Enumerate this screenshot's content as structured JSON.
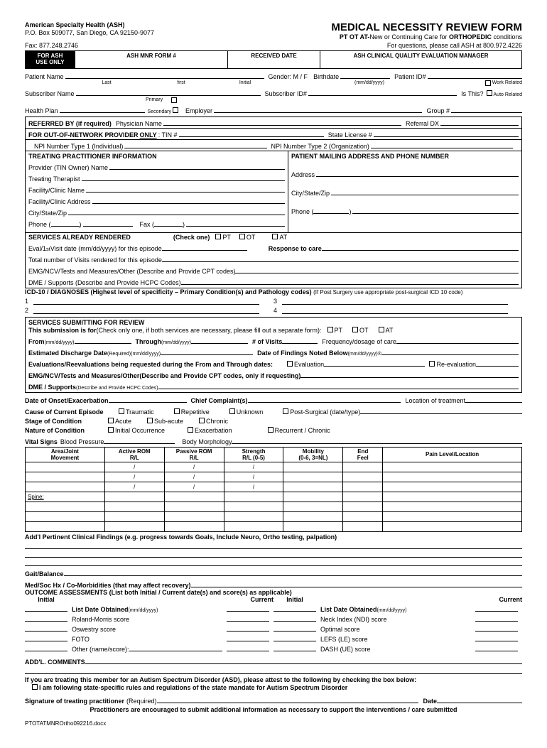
{
  "org": {
    "name": "American Specialty Health (ASH)",
    "addr": "P.O. Box 509077, San Diego, CA 92150-9077",
    "fax": "Fax: 877.248.2746"
  },
  "title": "MEDICAL NECESSITY REVIEW FORM",
  "subtitle_prefix": "PT OT AT-",
  "subtitle_mid": "New or Continuing Care for ",
  "subtitle_bold2": "ORTHOPEDIC",
  "subtitle_suffix": " conditions",
  "questions": "For questions, please call ASH at 800.972.4226",
  "topboxes": {
    "ash_only_1": "FOR ASH",
    "ash_only_2": "USE ONLY",
    "form_num": "ASH MNR FORM #",
    "recv": "RECEIVED DATE",
    "mgr": "ASH CLINICAL QUALITY EVALUATION MANAGER"
  },
  "patient": {
    "name_lbl": "Patient Name",
    "last": "Last",
    "first": "first",
    "initial": "Initial",
    "gender": "Gender: M / F",
    "birthdate": "Birthdate",
    "bd_fmt": "(mm/dd/yyyy)",
    "pid": "Patient ID#",
    "work": "Work Related",
    "sub_name": "Subscriber Name",
    "primary": "Primary",
    "secondary": "Secondary",
    "sub_id": "Subscriber ID#",
    "isthis": "Is This?",
    "auto": "Auto Related",
    "health_plan": "Health Plan",
    "employer": "Employer",
    "group": "Group #"
  },
  "referred": {
    "by": "REFERRED BY (if required)",
    "phys": "Physician Name",
    "refdx": "Referral DX",
    "oon": "FOR OUT-OF-NETWORK PROVIDER ",
    "only": "ONLY",
    "tin": ":  TIN #",
    "state_lic": "State License #",
    "npi1": "NPI Number Type 1 (Individual)",
    "npi2": "NPI Number Type 2 (Organization)"
  },
  "tpi": {
    "head": "TREATING PRACTITIONER INFORMATION",
    "provider": "Provider (TIN Owner) Name",
    "therapist": "Treating Therapist",
    "fac_name": "Facility/Clinic Name",
    "fac_addr": "Facility/Clinic Address",
    "csz": "City/State/Zip",
    "phone": "Phone (",
    "fax": "Fax ("
  },
  "pmail": {
    "head": "PATIENT MAILING ADDRESS AND PHONE NUMBER",
    "addr": "Address",
    "csz": "City/State/Zip",
    "phone": "Phone ("
  },
  "svc_rendered": {
    "head": "SERVICES ALREADY RENDERED",
    "check1": "(Check one)",
    "pt": "PT",
    "ot": "OT",
    "at": "AT",
    "eval": "Eval/1",
    "eval_sup": "st",
    "eval2": " Visit date (mm/dd/yyyy) for this episode",
    "response": "Response to care",
    "total": "Total number of Visits rendered  for this episode",
    "emg": "EMG/NCV/Tests and Measures/Other (Describe and Provide CPT codes)",
    "dme": "DME / Supports (Describe and Provide HCPC Codes)"
  },
  "icd": {
    "head": "ICD-10 / DIAGNOSES (Highest level of specificity – Primary Condition(s) and Pathology codes)",
    "note": "(If Post Surgery use appropriate post-surgical ICD 10 code)",
    "n1": "1",
    "n2": "2",
    "n3": "3",
    "n4": "4"
  },
  "svc_submit": {
    "head": "SERVICES SUBMITTING FOR REVIEW",
    "intro": "This submission is for ",
    "intro2": "(Check only one, if both services are necessary, please fill out a separate form):",
    "pt": "PT",
    "ot": "OT",
    "at": "AT",
    "from": "From",
    "from_fmt": "(mm/dd/yyyy)",
    "through": "Through",
    "thr_fmt": "(mm/dd/yyyy)",
    "visits": "# of Visits",
    "freq": "Frequency/dosage of care",
    "edd": "Estimated Discharge Date ",
    "edd2": "(Required)(mm/dd/yyyy)",
    "dfnb": "Date of Findings Noted Below ",
    "dfnb2": "(mm/dd/yyyy)®",
    "evals": "Evaluations/Reevaluations being requested during the From and Through dates:",
    "eval_cb": "Evaluation",
    "reeval_cb": "Re-evaluation",
    "emg": "EMG/NCV/Tests and Measures/Other(Describe and Provide CPT codes, only if requesting)",
    "dme": "DME / Supports ",
    "dme2": "(Describe and Provide HCPC Codes)"
  },
  "clinical": {
    "onset": "Date of Onset/Exacerbation",
    "chief": "Chief Complaint(s)",
    "loc": "Location of treatment",
    "cause": "Cause of Current Episode",
    "traumatic": "Traumatic",
    "repetitive": "Repetitive",
    "unknown": "Unknown",
    "post_surg": "Post-Surgical (date/type)",
    "stage": "Stage of Condition",
    "acute": "Acute",
    "subacute": "Sub-acute",
    "chronic": "Chronic",
    "nature": "Nature of Condition",
    "initial": "Initial Occurrence",
    "exacer": "Exacerbation",
    "recur": "Recurrent / Chronic",
    "vitals": "Vital Signs",
    "bp": "Blood Pressure",
    "morph": "Body Morphology"
  },
  "vit_headers": [
    "Area/Joint\nMovement",
    "Active ROM\nR/L",
    "Passive ROM\nR/L",
    "Strength\nR/L (0-5)",
    "Mobility\n(0-6, 3=NL)",
    "End\nFeel",
    "Pain Level/Location"
  ],
  "spine": "Spine:",
  "addl_find": "Add'l Pertinent Clinical Findings (e.g. progress towards Goals, Include Neuro, Ortho testing, palpation)",
  "gait": "Gait/Balance",
  "medsoc": "Med/Soc Hx / Co-Morbidities (that may affect recovery)",
  "outcome": {
    "head": "OUTCOME ASSESSMENTS (List both Initial / Current date(s) and score(s) as applicable)",
    "initial": "Initial",
    "current": "Current",
    "ldo": "List Date Obtained",
    "ldo_fmt": "(mm/dd/yyyy)",
    "roland": "Roland-Morris score",
    "oswestry": "Oswestry score",
    "foto": "FOTO",
    "other": "Other (name/score):",
    "neck": "Neck Index (NDI) score",
    "optimal": "Optimal score",
    "lefs": "LEFS (LE) score",
    "dash": "DASH (UE) score"
  },
  "addl_comm": "ADD'L. COMMENTS",
  "asd": {
    "line1": "If you are treating this member for an Autism Spectrum Disorder (ASD), please attest to the following by checking the box below:",
    "line2": "I am following state-specific rules and regulations of the state mandate for Autism Spectrum Disorder"
  },
  "sig": {
    "lbl": "Signature of treating practitioner",
    "req": "(Required)",
    "date": "Date",
    "note": "Practitioners are encouraged to submit additional information as necessary to support the interventions / care submitted"
  },
  "footer": "PTOTATMNROrtho092216.docx"
}
